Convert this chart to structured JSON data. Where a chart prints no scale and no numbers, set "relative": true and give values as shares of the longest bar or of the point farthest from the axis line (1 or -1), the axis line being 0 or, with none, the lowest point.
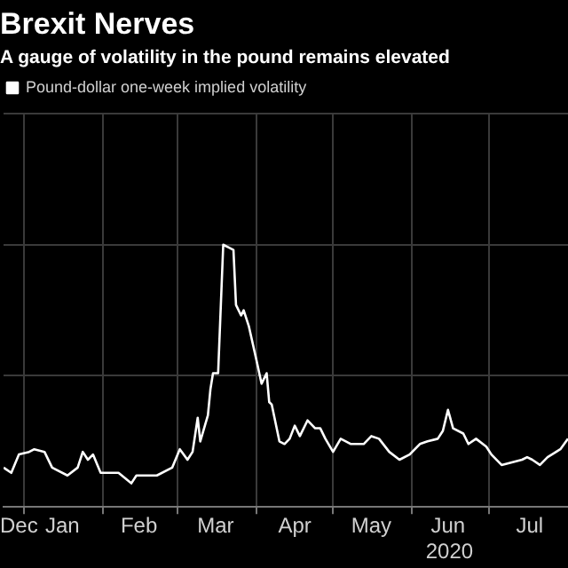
{
  "chart_data": {
    "type": "line",
    "title": "Brexit Nerves",
    "subtitle": "A gauge of volatility in the pound remains elevated",
    "relative": true,
    "legend": "top left",
    "grid": true,
    "xlim": [
      "2019-12-24",
      "2020-08-01"
    ],
    "xticks": [
      {
        "value": "2019-12-30",
        "label": "Dec"
      },
      {
        "value": "2020-01-01",
        "label": null
      },
      {
        "value": "2020-01-16",
        "label": "Jan"
      },
      {
        "value": "2020-02-01",
        "label": null
      },
      {
        "value": "2020-02-15",
        "label": "Feb"
      },
      {
        "value": "2020-03-01",
        "label": null
      },
      {
        "value": "2020-03-16",
        "label": "Mar"
      },
      {
        "value": "2020-04-01",
        "label": null
      },
      {
        "value": "2020-04-16",
        "label": "Apr"
      },
      {
        "value": "2020-05-01",
        "label": null
      },
      {
        "value": "2020-05-16",
        "label": "May"
      },
      {
        "value": "2020-06-01",
        "label": null
      },
      {
        "value": "2020-06-15",
        "label": "Jun"
      },
      {
        "value": "2020-07-01",
        "label": null
      },
      {
        "value": "2020-07-17",
        "label": "Jul"
      }
    ],
    "annotations": [
      "2020"
    ],
    "x": [
      "2019-12-24",
      "2019-12-27",
      "2019-12-30",
      "2020-01-03",
      "2020-01-05",
      "2020-01-09",
      "2020-01-12",
      "2020-01-18",
      "2020-01-22",
      "2020-01-24",
      "2020-01-26",
      "2020-01-28",
      "2020-01-31",
      "2020-02-07",
      "2020-02-12",
      "2020-02-14",
      "2020-02-22",
      "2020-02-28",
      "2020-03-02",
      "2020-03-05",
      "2020-03-07",
      "2020-03-09",
      "2020-03-10",
      "2020-03-13",
      "2020-03-14",
      "2020-03-15",
      "2020-03-17",
      "2020-03-19",
      "2020-03-21",
      "2020-03-23",
      "2020-03-24",
      "2020-03-26",
      "2020-03-27",
      "2020-03-29",
      "2020-04-01",
      "2020-04-03",
      "2020-04-05",
      "2020-04-06",
      "2020-04-07",
      "2020-04-10",
      "2020-04-12",
      "2020-04-14",
      "2020-04-16",
      "2020-04-18",
      "2020-04-21",
      "2020-04-24",
      "2020-04-26",
      "2020-04-28",
      "2020-05-01",
      "2020-05-04",
      "2020-05-08",
      "2020-05-13",
      "2020-05-16",
      "2020-05-19",
      "2020-05-23",
      "2020-05-27",
      "2020-05-31",
      "2020-06-04",
      "2020-06-07",
      "2020-06-11",
      "2020-06-13",
      "2020-06-15",
      "2020-06-17",
      "2020-06-21",
      "2020-06-23",
      "2020-06-26",
      "2020-06-30",
      "2020-07-02",
      "2020-07-06",
      "2020-07-10",
      "2020-07-14",
      "2020-07-16",
      "2020-07-18",
      "2020-07-21",
      "2020-07-24",
      "2020-07-29",
      "2020-08-01"
    ],
    "series": [
      {
        "name": "Pound-dollar one-week implied volatility",
        "color": "#ffffff",
        "values": [
          0.15,
          0.13,
          0.2,
          0.21,
          0.22,
          0.21,
          0.15,
          0.12,
          0.15,
          0.21,
          0.18,
          0.2,
          0.13,
          0.13,
          0.09,
          0.12,
          0.12,
          0.15,
          0.22,
          0.18,
          0.21,
          0.34,
          0.25,
          0.35,
          0.45,
          0.51,
          0.51,
          1,
          0.99,
          0.98,
          0.77,
          0.73,
          0.75,
          0.69,
          0.56,
          0.47,
          0.51,
          0.4,
          0.39,
          0.25,
          0.24,
          0.26,
          0.31,
          0.27,
          0.33,
          0.3,
          0.3,
          0.26,
          0.21,
          0.26,
          0.24,
          0.24,
          0.27,
          0.26,
          0.21,
          0.18,
          0.2,
          0.24,
          0.25,
          0.26,
          0.29,
          0.37,
          0.3,
          0.28,
          0.24,
          0.26,
          0.23,
          0.2,
          0.16,
          0.17,
          0.18,
          0.19,
          0.18,
          0.16,
          0.19,
          0.22,
          0.26
        ]
      }
    ]
  }
}
